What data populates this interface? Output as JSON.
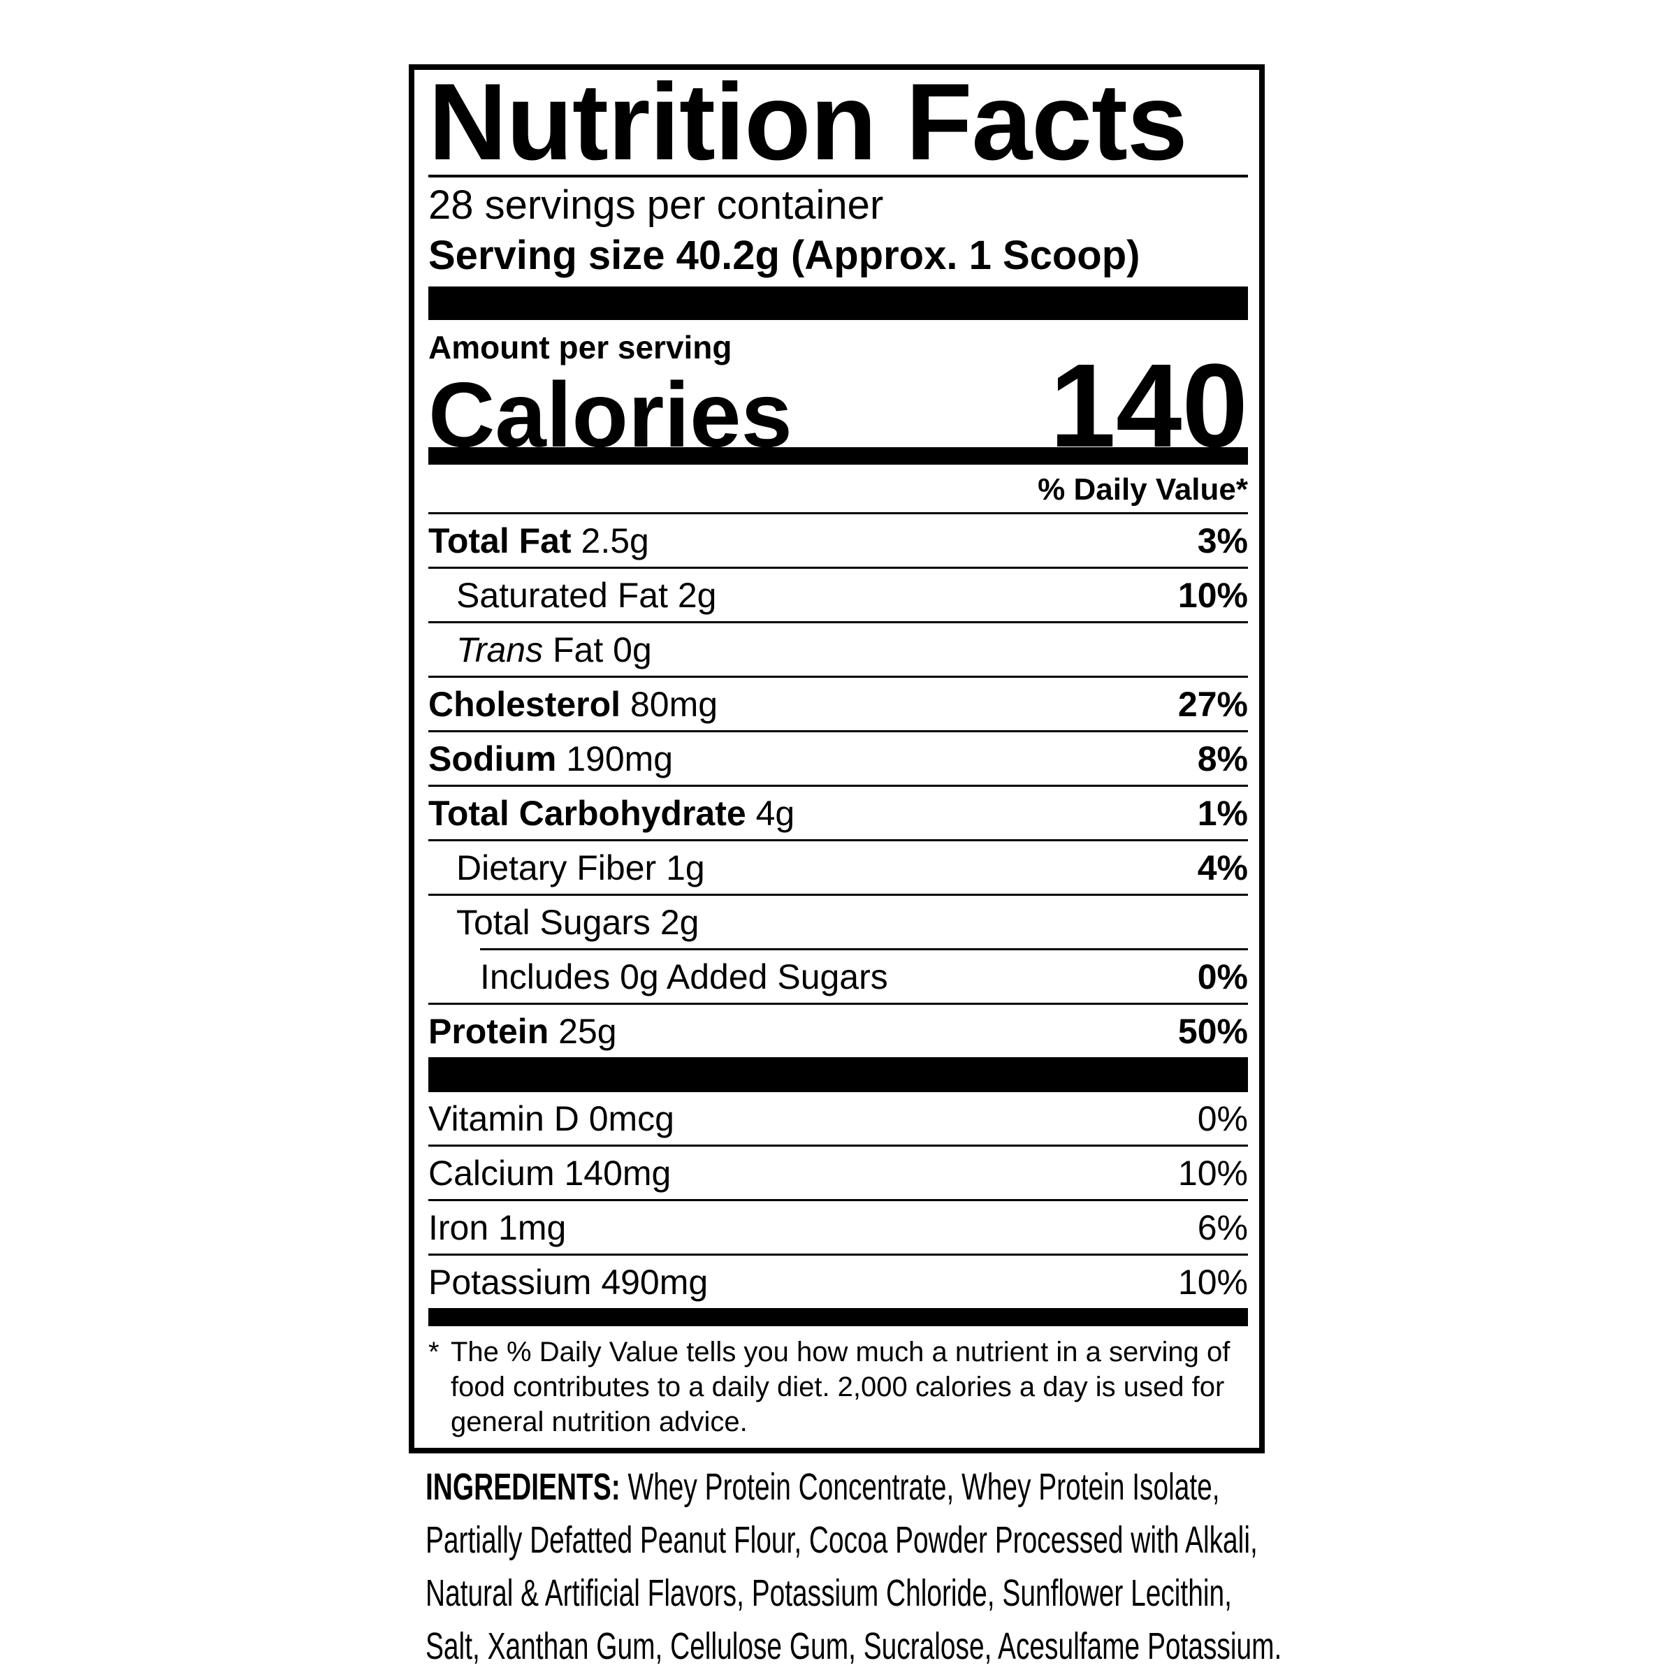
{
  "nutrition_label": {
    "title": "Nutrition Facts",
    "servings_per_container": "28 servings per container",
    "serving_size": "Serving size 40.2g (Approx. 1 Scoop)",
    "amount_per_serving": "Amount per serving",
    "calories_label": "Calories",
    "calories_value": "140",
    "daily_value_header": "% Daily Value*",
    "rows": [
      {
        "bold": "Total Fat",
        "rest": " 2.5g",
        "dv": "3%"
      },
      {
        "bold": "",
        "rest": "Saturated Fat 2g",
        "dv": "10%"
      },
      {
        "italic": "Trans",
        "rest": " Fat 0g",
        "dv": ""
      },
      {
        "bold": "Cholesterol",
        "rest": " 80mg",
        "dv": "27%"
      },
      {
        "bold": "Sodium",
        "rest": " 190mg",
        "dv": "8%"
      },
      {
        "bold": "Total Carbohydrate",
        "rest": " 4g",
        "dv": "1%"
      },
      {
        "bold": "",
        "rest": "Dietary Fiber 1g",
        "dv": "4%"
      },
      {
        "bold": "",
        "rest": "Total Sugars 2g",
        "dv": ""
      },
      {
        "bold": "",
        "rest": "Includes 0g Added Sugars",
        "dv": "0%"
      },
      {
        "bold": "Protein",
        "rest": " 25g",
        "dv": "50%"
      }
    ],
    "micronutrients": [
      {
        "name": "Vitamin D 0mcg",
        "dv": "0%"
      },
      {
        "name": "Calcium 140mg",
        "dv": "10%"
      },
      {
        "name": "Iron 1mg",
        "dv": "6%"
      },
      {
        "name": "Potassium 490mg",
        "dv": "10%"
      }
    ],
    "footnote_marker": "*",
    "footnote": "The % Daily Value tells you how much a nutrient in a serving of food contributes to a daily diet. 2,000 calories a day is used for general nutrition advice."
  },
  "ingredients": {
    "label": "INGREDIENTS:",
    "lines": [
      "Whey Protein Concentrate, Whey Protein Isolate,",
      "Partially Defatted Peanut Flour, Cocoa Powder Processed with Alkali,",
      "Natural & Artificial Flavors, Potassium Chloride, Sunflower Lecithin,",
      "Salt, Xanthan Gum, Cellulose Gum, Sucralose, Acesulfame Potassium."
    ]
  },
  "colors": {
    "ink": "#000000",
    "background": "#ffffff"
  }
}
